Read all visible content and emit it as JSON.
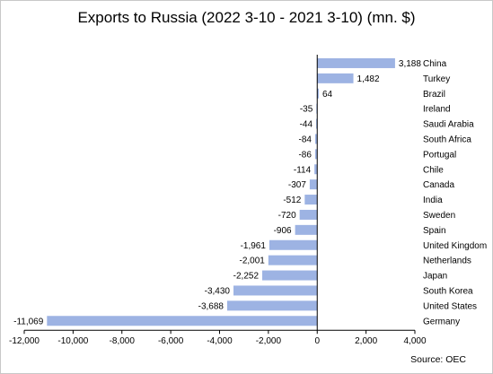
{
  "title": "Exports to Russia (2022 3-10 - 2021 3-10) (mn. $)",
  "source": "Source: OEC",
  "chart_data": {
    "type": "bar",
    "orientation": "horizontal",
    "title": "Exports to Russia (2022 3-10 - 2021 3-10) (mn. $)",
    "xlabel": "",
    "ylabel": "",
    "xlim": [
      -12000,
      4000
    ],
    "xticks": [
      -12000,
      -10000,
      -8000,
      -6000,
      -4000,
      -2000,
      0,
      2000,
      4000
    ],
    "xtick_labels": [
      "-12,000",
      "-10,000",
      "-8,000",
      "-6,000",
      "-4,000",
      "-2,000",
      "0",
      "2,000",
      "4,000"
    ],
    "grid": false,
    "bar_color": "#9db3e3",
    "categories": [
      "China",
      "Turkey",
      "Brazil",
      "Ireland",
      "Saudi Arabia",
      "South Africa",
      "Portugal",
      "Chile",
      "Canada",
      "India",
      "Sweden",
      "Spain",
      "United Kingdom",
      "Netherlands",
      "Japan",
      "South Korea",
      "United States",
      "Germany"
    ],
    "values": [
      3188,
      1482,
      64,
      -35,
      -44,
      -84,
      -86,
      -114,
      -307,
      -512,
      -720,
      -906,
      -1961,
      -2001,
      -2252,
      -3430,
      -3688,
      -11069
    ],
    "value_labels": [
      "3,188",
      "1,482",
      "64",
      "-35",
      "-44",
      "-84",
      "-86",
      "-114",
      "-307",
      "-512",
      "-720",
      "-906",
      "-1,961",
      "-2,001",
      "-2,252",
      "-3,430",
      "-3,688",
      "-11,069"
    ]
  }
}
